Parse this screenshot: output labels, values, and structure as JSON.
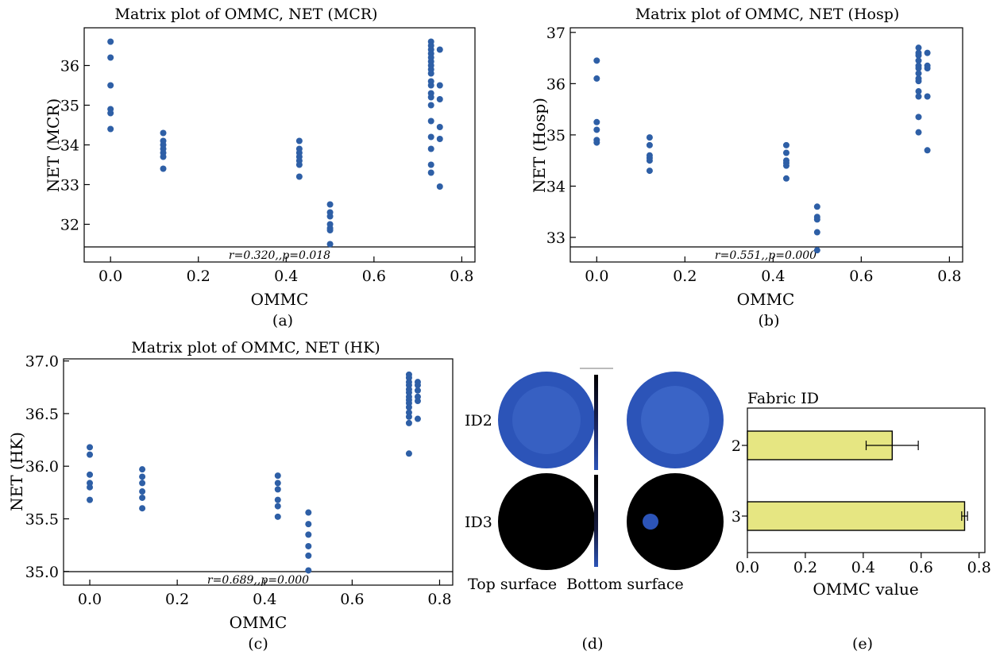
{
  "chart_data": [
    {
      "panel": "(a)",
      "type": "scatter",
      "title": "Matrix plot of OMMC, NET (MCR)",
      "xlabel": "OMMC",
      "ylabel": "NET (MCR)",
      "xlim": [
        -0.06,
        0.83
      ],
      "ylim": [
        31.05,
        36.95
      ],
      "xticks": [
        "0.0",
        "0.2",
        "0.4",
        "0.6",
        "0.8"
      ],
      "yticks": [
        "32",
        "33",
        "34",
        "35",
        "36"
      ],
      "annotation": "r=0.320,,p=0.018",
      "points": [
        [
          0,
          36.6
        ],
        [
          0,
          36.2
        ],
        [
          0,
          35.5
        ],
        [
          0,
          34.9
        ],
        [
          0,
          34.8
        ],
        [
          0,
          34.4
        ],
        [
          0.12,
          34.3
        ],
        [
          0.12,
          34.1
        ],
        [
          0.12,
          34.0
        ],
        [
          0.12,
          33.9
        ],
        [
          0.12,
          33.8
        ],
        [
          0.12,
          33.7
        ],
        [
          0.12,
          33.4
        ],
        [
          0.43,
          34.1
        ],
        [
          0.43,
          33.9
        ],
        [
          0.43,
          33.8
        ],
        [
          0.43,
          33.7
        ],
        [
          0.43,
          33.6
        ],
        [
          0.43,
          33.5
        ],
        [
          0.43,
          33.2
        ],
        [
          0.5,
          32.5
        ],
        [
          0.5,
          32.3
        ],
        [
          0.5,
          32.2
        ],
        [
          0.5,
          32.0
        ],
        [
          0.5,
          31.9
        ],
        [
          0.5,
          31.85
        ],
        [
          0.5,
          31.5
        ],
        [
          0.73,
          36.6
        ],
        [
          0.73,
          36.5
        ],
        [
          0.73,
          36.4
        ],
        [
          0.73,
          36.3
        ],
        [
          0.73,
          36.2
        ],
        [
          0.73,
          36.1
        ],
        [
          0.73,
          36.0
        ],
        [
          0.73,
          35.9
        ],
        [
          0.73,
          35.8
        ],
        [
          0.73,
          35.6
        ],
        [
          0.73,
          35.5
        ],
        [
          0.73,
          35.3
        ],
        [
          0.73,
          35.2
        ],
        [
          0.73,
          35.0
        ],
        [
          0.73,
          34.6
        ],
        [
          0.73,
          34.2
        ],
        [
          0.73,
          33.9
        ],
        [
          0.73,
          33.5
        ],
        [
          0.73,
          33.3
        ],
        [
          0.75,
          36.4
        ],
        [
          0.75,
          35.5
        ],
        [
          0.75,
          35.15
        ],
        [
          0.75,
          34.45
        ],
        [
          0.75,
          34.15
        ],
        [
          0.75,
          32.95
        ]
      ]
    },
    {
      "panel": "(b)",
      "type": "scatter",
      "title": "Matrix plot of OMMC, NET (Hosp)",
      "xlabel": "OMMC",
      "ylabel": "NET (Hosp)",
      "xlim": [
        -0.06,
        0.83
      ],
      "ylim": [
        32.52,
        37.09
      ],
      "xticks": [
        "0.0",
        "0.2",
        "0.4",
        "0.6",
        "0.8"
      ],
      "yticks": [
        "33",
        "34",
        "35",
        "36",
        "37"
      ],
      "annotation": "r=0.551,,p=0.000",
      "points": [
        [
          0,
          36.45
        ],
        [
          0,
          36.1
        ],
        [
          0,
          35.25
        ],
        [
          0,
          35.1
        ],
        [
          0,
          34.9
        ],
        [
          0,
          34.85
        ],
        [
          0.12,
          34.95
        ],
        [
          0.12,
          34.8
        ],
        [
          0.12,
          34.6
        ],
        [
          0.12,
          34.55
        ],
        [
          0.12,
          34.5
        ],
        [
          0.12,
          34.3
        ],
        [
          0.43,
          34.8
        ],
        [
          0.43,
          34.65
        ],
        [
          0.43,
          34.5
        ],
        [
          0.43,
          34.45
        ],
        [
          0.43,
          34.4
        ],
        [
          0.43,
          34.15
        ],
        [
          0.5,
          33.6
        ],
        [
          0.5,
          33.4
        ],
        [
          0.5,
          33.35
        ],
        [
          0.5,
          33.1
        ],
        [
          0.5,
          32.75
        ],
        [
          0.73,
          36.7
        ],
        [
          0.73,
          36.6
        ],
        [
          0.73,
          36.55
        ],
        [
          0.73,
          36.45
        ],
        [
          0.73,
          36.35
        ],
        [
          0.73,
          36.3
        ],
        [
          0.73,
          36.2
        ],
        [
          0.73,
          36.1
        ],
        [
          0.73,
          36.05
        ],
        [
          0.73,
          35.85
        ],
        [
          0.73,
          35.75
        ],
        [
          0.73,
          35.35
        ],
        [
          0.73,
          35.05
        ],
        [
          0.75,
          36.6
        ],
        [
          0.75,
          36.35
        ],
        [
          0.75,
          36.3
        ],
        [
          0.75,
          35.75
        ],
        [
          0.75,
          34.7
        ]
      ]
    },
    {
      "panel": "(c)",
      "type": "scatter",
      "title": "Matrix plot of OMMC, NET (HK)",
      "xlabel": "OMMC",
      "ylabel": "NET (HK)",
      "xlim": [
        -0.06,
        0.83
      ],
      "ylim": [
        34.87,
        37.02
      ],
      "xticks": [
        "0.0",
        "0.2",
        "0.4",
        "0.6",
        "0.8"
      ],
      "yticks": [
        "35.0",
        "35.5",
        "36.0",
        "36.5",
        "37.0"
      ],
      "annotation": "r=0.689,,p=0.000",
      "points": [
        [
          0,
          36.18
        ],
        [
          0,
          36.11
        ],
        [
          0,
          35.92
        ],
        [
          0,
          35.84
        ],
        [
          0,
          35.8
        ],
        [
          0,
          35.68
        ],
        [
          0.12,
          35.97
        ],
        [
          0.12,
          35.9
        ],
        [
          0.12,
          35.84
        ],
        [
          0.12,
          35.76
        ],
        [
          0.12,
          35.7
        ],
        [
          0.12,
          35.6
        ],
        [
          0.43,
          35.91
        ],
        [
          0.43,
          35.84
        ],
        [
          0.43,
          35.78
        ],
        [
          0.43,
          35.68
        ],
        [
          0.43,
          35.62
        ],
        [
          0.43,
          35.52
        ],
        [
          0.5,
          35.56
        ],
        [
          0.5,
          35.45
        ],
        [
          0.5,
          35.35
        ],
        [
          0.5,
          35.24
        ],
        [
          0.5,
          35.15
        ],
        [
          0.5,
          35.01
        ],
        [
          0.73,
          36.87
        ],
        [
          0.73,
          36.84
        ],
        [
          0.73,
          36.8
        ],
        [
          0.73,
          36.77
        ],
        [
          0.73,
          36.73
        ],
        [
          0.73,
          36.7
        ],
        [
          0.73,
          36.66
        ],
        [
          0.73,
          36.63
        ],
        [
          0.73,
          36.6
        ],
        [
          0.73,
          36.56
        ],
        [
          0.73,
          36.51
        ],
        [
          0.73,
          36.47
        ],
        [
          0.73,
          36.41
        ],
        [
          0.73,
          36.12
        ],
        [
          0.75,
          36.8
        ],
        [
          0.75,
          36.77
        ],
        [
          0.75,
          36.72
        ],
        [
          0.75,
          36.66
        ],
        [
          0.75,
          36.62
        ],
        [
          0.75,
          36.45
        ]
      ]
    },
    {
      "panel": "(e)",
      "type": "bar",
      "orientation": "horizontal",
      "title": "Fabric ID",
      "xlabel": "OMMC value",
      "categories": [
        "2",
        "3"
      ],
      "values": [
        0.5,
        0.75
      ],
      "errors": [
        0.09,
        0.01
      ],
      "xlim": [
        0,
        0.82
      ],
      "xticks": [
        "0.0",
        "0.2",
        "0.4",
        "0.6",
        "0.8"
      ]
    }
  ],
  "panel_d": {
    "label": "(d)",
    "rows": [
      "ID2",
      "ID3"
    ],
    "bottom_text": "Top surface  Bottom surface"
  },
  "colors": {
    "point": "#2e5fa6",
    "bar_fill": "#e6e682",
    "id2_disc_outer": "#2c54b8",
    "id2_disc_inner": "#3a62c6",
    "id3_disc": "#000000",
    "id3_spot": "#2c54b8"
  }
}
